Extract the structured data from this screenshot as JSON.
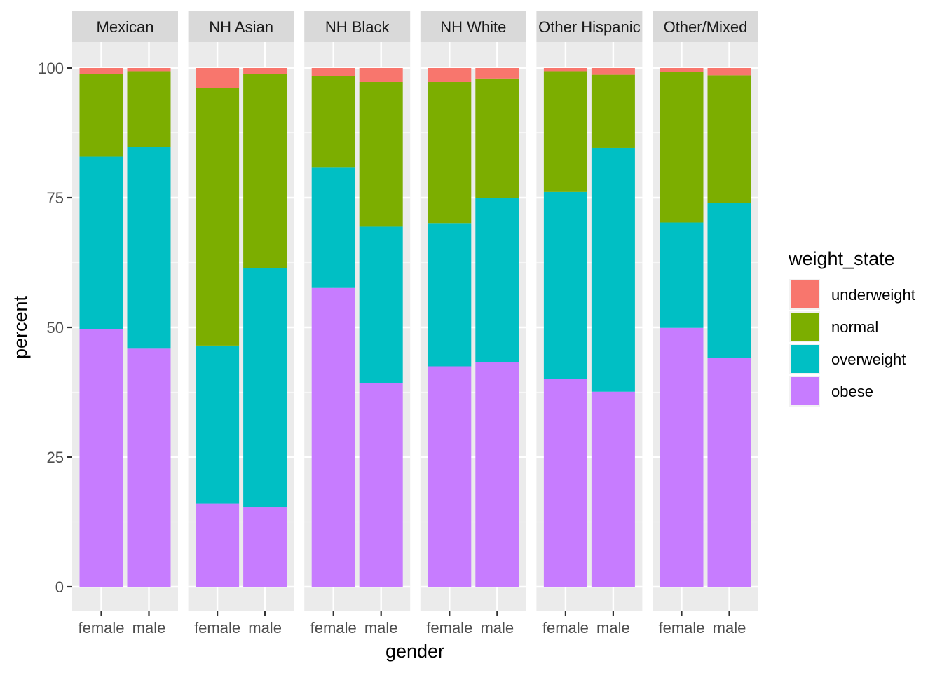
{
  "chart_data": {
    "type": "bar",
    "stacked": true,
    "facet_by": "race",
    "facets": [
      "Mexican",
      "NH Asian",
      "NH Black",
      "NH White",
      "Other Hispanic",
      "Other/Mixed"
    ],
    "categories": [
      "female",
      "male"
    ],
    "xlabel": "gender",
    "ylabel": "percent",
    "ylim": [
      0,
      100
    ],
    "yticks": [
      0,
      25,
      50,
      75,
      100
    ],
    "grid": true,
    "legend": {
      "title": "weight_state",
      "position": "right",
      "entries": [
        "underweight",
        "normal",
        "overweight",
        "obese"
      ]
    },
    "colors": {
      "underweight": "#F8766D",
      "normal": "#7CAE00",
      "overweight": "#00BFC4",
      "obese": "#C77CFF"
    },
    "series_stack_order_bottom_to_top": [
      "obese",
      "overweight",
      "normal",
      "underweight"
    ],
    "panels": [
      {
        "facet": "Mexican",
        "bars": [
          {
            "gender": "female",
            "obese": 49.6,
            "overweight": 33.3,
            "normal": 16.0,
            "underweight": 1.1
          },
          {
            "gender": "male",
            "obese": 45.9,
            "overweight": 38.9,
            "normal": 14.6,
            "underweight": 0.6
          }
        ]
      },
      {
        "facet": "NH Asian",
        "bars": [
          {
            "gender": "female",
            "obese": 16.0,
            "overweight": 30.5,
            "normal": 49.7,
            "underweight": 3.8
          },
          {
            "gender": "male",
            "obese": 15.4,
            "overweight": 46.0,
            "normal": 37.5,
            "underweight": 1.1
          }
        ]
      },
      {
        "facet": "NH Black",
        "bars": [
          {
            "gender": "female",
            "obese": 57.6,
            "overweight": 23.3,
            "normal": 17.5,
            "underweight": 1.6
          },
          {
            "gender": "male",
            "obese": 39.3,
            "overweight": 30.1,
            "normal": 27.9,
            "underweight": 2.7
          }
        ]
      },
      {
        "facet": "NH White",
        "bars": [
          {
            "gender": "female",
            "obese": 42.5,
            "overweight": 27.6,
            "normal": 27.2,
            "underweight": 2.7
          },
          {
            "gender": "male",
            "obese": 43.3,
            "overweight": 31.6,
            "normal": 23.1,
            "underweight": 2.0
          }
        ]
      },
      {
        "facet": "Other Hispanic",
        "bars": [
          {
            "gender": "female",
            "obese": 40.0,
            "overweight": 36.1,
            "normal": 23.3,
            "underweight": 0.6
          },
          {
            "gender": "male",
            "obese": 37.6,
            "overweight": 47.0,
            "normal": 14.1,
            "underweight": 1.3
          }
        ]
      },
      {
        "facet": "Other/Mixed",
        "bars": [
          {
            "gender": "female",
            "obese": 49.9,
            "overweight": 20.3,
            "normal": 29.1,
            "underweight": 0.7
          },
          {
            "gender": "male",
            "obese": 44.1,
            "overweight": 29.9,
            "normal": 24.6,
            "underweight": 1.4
          }
        ]
      }
    ]
  }
}
